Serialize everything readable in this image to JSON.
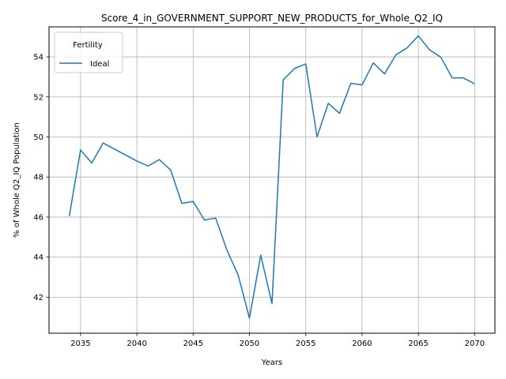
{
  "chart_data": {
    "type": "line",
    "title": "Score_4_in_GOVERNMENT_SUPPORT_NEW_PRODUCTS_for_Whole_Q2_IQ",
    "xlabel": "Years",
    "ylabel": "% of Whole Q2_IQ Population",
    "xlim": [
      2032.2,
      2071.8
    ],
    "ylim": [
      40.2,
      55.5
    ],
    "x_ticks": [
      2035,
      2040,
      2045,
      2050,
      2055,
      2060,
      2065,
      2070
    ],
    "y_ticks": [
      42,
      44,
      46,
      48,
      50,
      52,
      54
    ],
    "grid": true,
    "legend": {
      "title": "Fertility",
      "placement": "upper-left"
    },
    "series": [
      {
        "name": "Ideal",
        "color": "#1f77b4",
        "x": [
          2034,
          2035,
          2036,
          2037,
          2038,
          2039,
          2040,
          2041,
          2042,
          2043,
          2044,
          2045,
          2046,
          2047,
          2048,
          2049,
          2050,
          2051,
          2052,
          2053,
          2054,
          2055,
          2056,
          2057,
          2058,
          2059,
          2060,
          2061,
          2062,
          2063,
          2064,
          2065,
          2066,
          2067,
          2068,
          2069,
          2070
        ],
        "values": [
          46.05,
          49.35,
          48.7,
          49.7,
          49.4,
          49.1,
          48.8,
          48.55,
          48.87,
          48.35,
          46.68,
          46.78,
          45.85,
          45.95,
          44.35,
          43.1,
          40.95,
          44.1,
          41.68,
          52.85,
          53.42,
          53.65,
          50.0,
          51.68,
          51.18,
          52.68,
          52.6,
          53.7,
          53.15,
          54.1,
          54.45,
          55.05,
          54.35,
          53.98,
          52.95,
          52.95,
          52.65
        ]
      }
    ]
  }
}
